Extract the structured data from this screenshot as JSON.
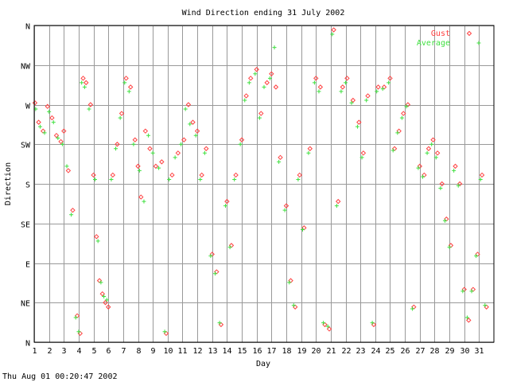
{
  "chart_data": {
    "type": "scatter",
    "title": "Wind Direction ending 31 July 2002",
    "xlabel": "Day",
    "ylabel": "Direction",
    "footer": "Thu Aug 01 00:20:47 2002",
    "xlim": [
      1,
      32
    ],
    "ylim": [
      0,
      360
    ],
    "x_ticks": [
      1,
      2,
      3,
      4,
      5,
      6,
      7,
      8,
      9,
      10,
      11,
      12,
      13,
      14,
      15,
      16,
      17,
      18,
      19,
      20,
      21,
      22,
      23,
      24,
      25,
      26,
      27,
      28,
      29,
      30,
      31
    ],
    "x_tick_labels": [
      "1",
      "2",
      "3",
      "4",
      "5",
      "6",
      "7",
      "8",
      "9",
      "10",
      "11",
      "12",
      "13",
      "14",
      "15",
      "16",
      "17",
      "18",
      "19",
      "20",
      "21",
      "22",
      "23",
      "24",
      "25",
      "26",
      "27",
      "28",
      "29",
      "30",
      "31"
    ],
    "y_ticks": [
      0,
      45,
      90,
      135,
      180,
      225,
      270,
      315,
      360
    ],
    "y_tick_labels": [
      "N",
      "NE",
      "E",
      "SE",
      "S",
      "SW",
      "W",
      "NW",
      "N"
    ],
    "grid": true,
    "legend_position": "top-right",
    "series": [
      {
        "name": "Gust",
        "color": "#ff4040",
        "marker": "diamond",
        "points": [
          [
            1.05,
            272
          ],
          [
            1.3,
            250
          ],
          [
            1.6,
            240
          ],
          [
            1.9,
            268
          ],
          [
            2.2,
            255
          ],
          [
            2.5,
            235
          ],
          [
            2.8,
            228
          ],
          [
            3.0,
            240
          ],
          [
            3.3,
            195
          ],
          [
            3.6,
            150
          ],
          [
            3.9,
            30
          ],
          [
            4.1,
            10
          ],
          [
            4.3,
            300
          ],
          [
            4.5,
            295
          ],
          [
            4.8,
            270
          ],
          [
            5.0,
            190
          ],
          [
            5.2,
            120
          ],
          [
            5.4,
            70
          ],
          [
            5.6,
            55
          ],
          [
            5.8,
            45
          ],
          [
            6.0,
            40
          ],
          [
            6.3,
            190
          ],
          [
            6.6,
            225
          ],
          [
            6.9,
            260
          ],
          [
            7.2,
            300
          ],
          [
            7.5,
            290
          ],
          [
            7.8,
            230
          ],
          [
            8.0,
            200
          ],
          [
            8.2,
            165
          ],
          [
            8.5,
            240
          ],
          [
            8.8,
            220
          ],
          [
            9.2,
            200
          ],
          [
            9.6,
            205
          ],
          [
            9.9,
            10
          ],
          [
            10.3,
            190
          ],
          [
            10.7,
            215
          ],
          [
            11.1,
            230
          ],
          [
            11.4,
            270
          ],
          [
            11.7,
            250
          ],
          [
            12.0,
            240
          ],
          [
            12.3,
            190
          ],
          [
            12.6,
            220
          ],
          [
            13.0,
            100
          ],
          [
            13.3,
            80
          ],
          [
            13.6,
            20
          ],
          [
            14.0,
            160
          ],
          [
            14.3,
            110
          ],
          [
            14.6,
            190
          ],
          [
            15.0,
            230
          ],
          [
            15.3,
            280
          ],
          [
            15.6,
            300
          ],
          [
            16.0,
            310
          ],
          [
            16.3,
            260
          ],
          [
            16.7,
            295
          ],
          [
            17.0,
            305
          ],
          [
            17.3,
            290
          ],
          [
            17.6,
            210
          ],
          [
            18.0,
            155
          ],
          [
            18.3,
            70
          ],
          [
            18.6,
            40
          ],
          [
            18.9,
            190
          ],
          [
            19.2,
            130
          ],
          [
            19.6,
            220
          ],
          [
            20.0,
            300
          ],
          [
            20.3,
            290
          ],
          [
            20.6,
            20
          ],
          [
            20.9,
            15
          ],
          [
            21.2,
            355
          ],
          [
            21.5,
            160
          ],
          [
            21.8,
            290
          ],
          [
            22.1,
            300
          ],
          [
            22.5,
            275
          ],
          [
            22.9,
            250
          ],
          [
            23.2,
            215
          ],
          [
            23.5,
            280
          ],
          [
            23.9,
            20
          ],
          [
            24.2,
            290
          ],
          [
            24.6,
            290
          ],
          [
            25.0,
            300
          ],
          [
            25.3,
            220
          ],
          [
            25.6,
            240
          ],
          [
            25.9,
            260
          ],
          [
            26.2,
            270
          ],
          [
            26.6,
            40
          ],
          [
            27.0,
            200
          ],
          [
            27.3,
            190
          ],
          [
            27.6,
            220
          ],
          [
            27.9,
            230
          ],
          [
            28.2,
            215
          ],
          [
            28.5,
            180
          ],
          [
            28.8,
            140
          ],
          [
            29.1,
            110
          ],
          [
            29.4,
            200
          ],
          [
            29.7,
            180
          ],
          [
            30.0,
            60
          ],
          [
            30.3,
            25
          ],
          [
            30.6,
            60
          ],
          [
            30.9,
            100
          ],
          [
            31.2,
            190
          ],
          [
            31.5,
            40
          ]
        ]
      },
      {
        "name": "Average",
        "color": "#40e040",
        "marker": "plus",
        "points": [
          [
            1.1,
            265
          ],
          [
            1.4,
            245
          ],
          [
            1.7,
            238
          ],
          [
            2.0,
            262
          ],
          [
            2.3,
            250
          ],
          [
            2.6,
            232
          ],
          [
            2.9,
            225
          ],
          [
            3.2,
            200
          ],
          [
            3.5,
            145
          ],
          [
            3.8,
            28
          ],
          [
            4.0,
            12
          ],
          [
            4.2,
            295
          ],
          [
            4.4,
            290
          ],
          [
            4.7,
            265
          ],
          [
            5.1,
            185
          ],
          [
            5.3,
            115
          ],
          [
            5.5,
            68
          ],
          [
            5.7,
            52
          ],
          [
            5.9,
            48
          ],
          [
            6.2,
            185
          ],
          [
            6.5,
            220
          ],
          [
            6.8,
            255
          ],
          [
            7.1,
            295
          ],
          [
            7.4,
            285
          ],
          [
            7.7,
            225
          ],
          [
            8.1,
            195
          ],
          [
            8.4,
            160
          ],
          [
            8.7,
            235
          ],
          [
            9.0,
            215
          ],
          [
            9.4,
            198
          ],
          [
            9.8,
            12
          ],
          [
            10.1,
            185
          ],
          [
            10.5,
            210
          ],
          [
            10.9,
            225
          ],
          [
            11.2,
            265
          ],
          [
            11.5,
            248
          ],
          [
            11.9,
            235
          ],
          [
            12.2,
            185
          ],
          [
            12.5,
            215
          ],
          [
            12.9,
            98
          ],
          [
            13.2,
            78
          ],
          [
            13.5,
            22
          ],
          [
            13.9,
            155
          ],
          [
            14.2,
            108
          ],
          [
            14.5,
            185
          ],
          [
            14.9,
            225
          ],
          [
            15.2,
            275
          ],
          [
            15.5,
            295
          ],
          [
            15.9,
            305
          ],
          [
            16.2,
            255
          ],
          [
            16.5,
            290
          ],
          [
            16.9,
            300
          ],
          [
            17.2,
            335
          ],
          [
            17.5,
            205
          ],
          [
            17.9,
            150
          ],
          [
            18.2,
            68
          ],
          [
            18.5,
            42
          ],
          [
            18.8,
            185
          ],
          [
            19.1,
            128
          ],
          [
            19.5,
            215
          ],
          [
            19.9,
            295
          ],
          [
            20.2,
            285
          ],
          [
            20.5,
            22
          ],
          [
            20.8,
            18
          ],
          [
            21.1,
            350
          ],
          [
            21.4,
            155
          ],
          [
            21.7,
            285
          ],
          [
            22.0,
            295
          ],
          [
            22.4,
            272
          ],
          [
            22.8,
            245
          ],
          [
            23.1,
            210
          ],
          [
            23.4,
            275
          ],
          [
            23.8,
            22
          ],
          [
            24.1,
            285
          ],
          [
            24.5,
            288
          ],
          [
            24.9,
            295
          ],
          [
            25.2,
            218
          ],
          [
            25.5,
            238
          ],
          [
            25.8,
            255
          ],
          [
            26.1,
            268
          ],
          [
            26.5,
            38
          ],
          [
            26.9,
            198
          ],
          [
            27.2,
            188
          ],
          [
            27.5,
            215
          ],
          [
            27.8,
            225
          ],
          [
            28.1,
            210
          ],
          [
            28.4,
            175
          ],
          [
            28.7,
            138
          ],
          [
            29.0,
            108
          ],
          [
            29.3,
            195
          ],
          [
            29.6,
            178
          ],
          [
            29.9,
            58
          ],
          [
            30.2,
            28
          ],
          [
            30.5,
            58
          ],
          [
            30.8,
            98
          ],
          [
            31.1,
            185
          ],
          [
            31.4,
            42
          ]
        ]
      }
    ]
  }
}
